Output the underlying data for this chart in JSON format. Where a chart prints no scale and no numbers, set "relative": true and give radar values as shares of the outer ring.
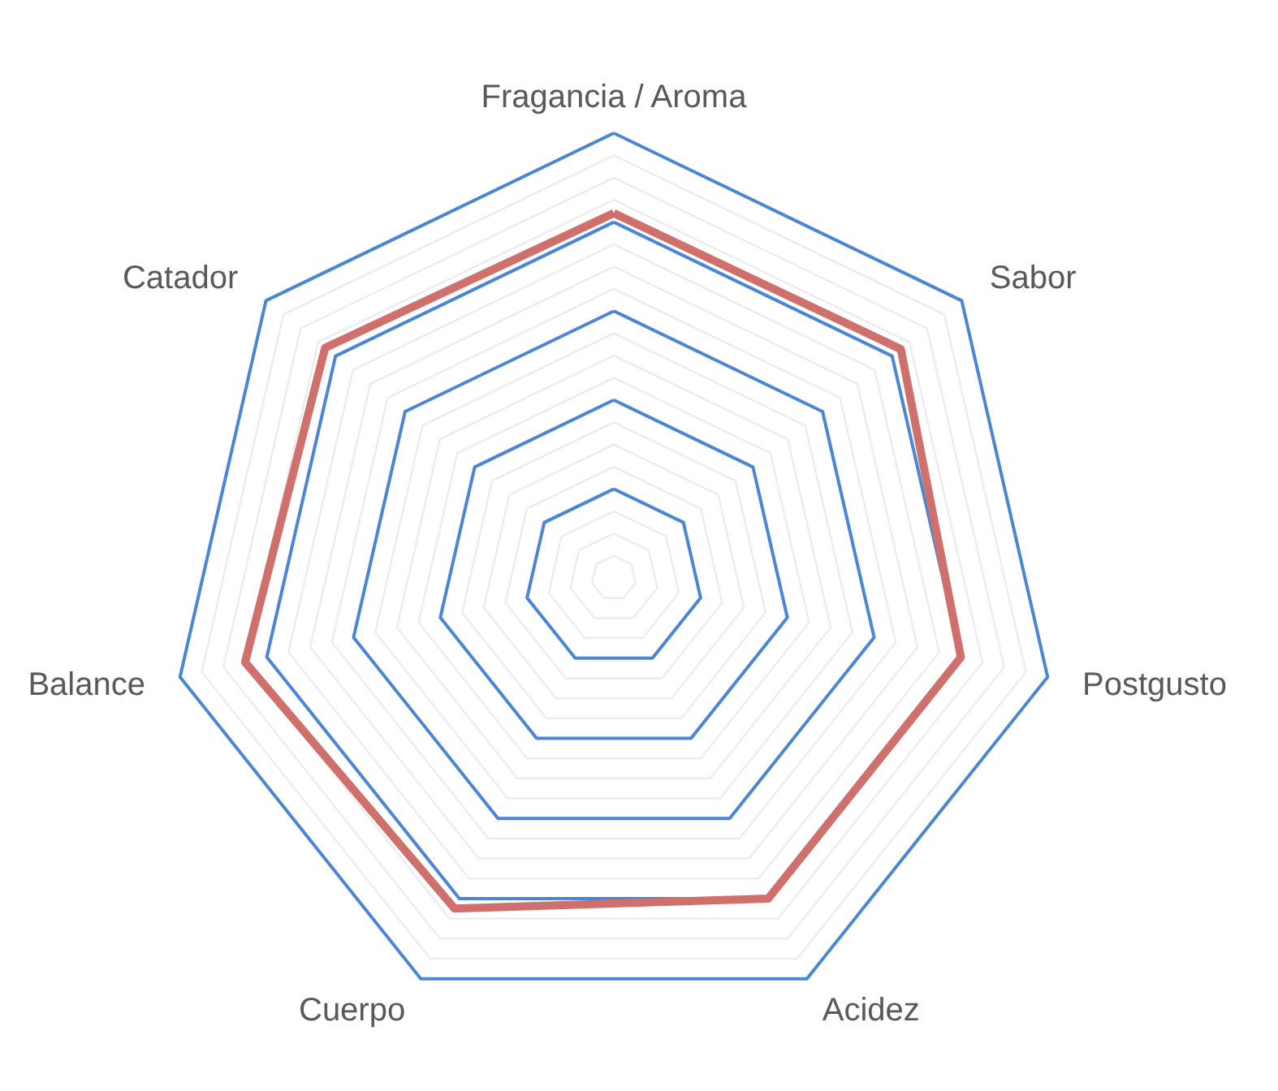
{
  "chart_data": {
    "type": "radar",
    "relative": true,
    "grid": true,
    "categories": [
      "Fragancia / Aroma",
      "Sabor",
      "Postgusto",
      "Acidez",
      "Cuerpo",
      "Balance",
      "Catador"
    ],
    "series": [
      {
        "color": "#d0706c",
        "values": [
          0.82,
          0.825,
          0.8,
          0.8,
          0.825,
          0.85,
          0.83
        ]
      }
    ]
  }
}
